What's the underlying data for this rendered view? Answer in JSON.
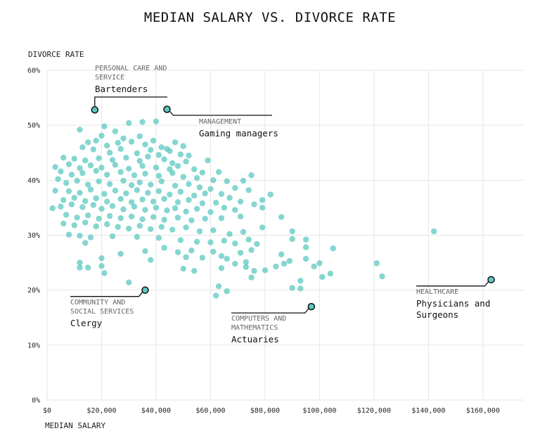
{
  "chart_data": {
    "type": "scatter",
    "title": "MEDIAN SALARY VS. DIVORCE RATE",
    "xlabel": "MEDIAN SALARY",
    "ylabel": "DIVORCE RATE",
    "xlim": [
      0,
      175000
    ],
    "ylim": [
      0,
      60
    ],
    "x_ticks": [
      0,
      20000,
      40000,
      60000,
      80000,
      100000,
      120000,
      140000,
      160000
    ],
    "x_tick_labels": [
      "$0",
      "$20,000",
      "$40,000",
      "$60,000",
      "$80,000",
      "$100,000",
      "$120,000",
      "$140,000",
      "$160,000"
    ],
    "y_ticks": [
      0,
      10,
      20,
      30,
      40,
      50,
      60
    ],
    "y_tick_labels": [
      "0%",
      "10%",
      "20%",
      "30%",
      "40%",
      "50%",
      "60%"
    ],
    "grid": true,
    "highlights": [
      {
        "category": "PERSONAL CARE AND SERVICE",
        "job": "Bartenders",
        "x": 17500,
        "y": 52.8
      },
      {
        "category": "MANAGEMENT",
        "job": "Gaming managers",
        "x": 44000,
        "y": 52.9
      },
      {
        "category": "COMMUNITY AND SOCIAL SERVICES",
        "job": "Clergy",
        "x": 36000,
        "y": 20.0
      },
      {
        "category": "COMPUTERS AND MATHEMATICS",
        "job": "Actuaries",
        "x": 97000,
        "y": 17.0
      },
      {
        "category": "HEALTHCARE",
        "job": "Physicians and Surgeons",
        "x": 163000,
        "y": 21.9
      }
    ],
    "points": [
      [
        12000,
        49.2
      ],
      [
        21000,
        49.8
      ],
      [
        30000,
        50.4
      ],
      [
        35000,
        50.6
      ],
      [
        40000,
        50.7
      ],
      [
        25000,
        48.9
      ],
      [
        20000,
        48.1
      ],
      [
        28000,
        47.6
      ],
      [
        34000,
        48.0
      ],
      [
        39000,
        47.2
      ],
      [
        15000,
        46.9
      ],
      [
        18000,
        47.2
      ],
      [
        22000,
        46.3
      ],
      [
        26000,
        46.8
      ],
      [
        31000,
        47.0
      ],
      [
        36000,
        46.5
      ],
      [
        42000,
        46.0
      ],
      [
        47000,
        46.9
      ],
      [
        50000,
        46.2
      ],
      [
        45000,
        45.3
      ],
      [
        13000,
        46.0
      ],
      [
        17000,
        45.6
      ],
      [
        23000,
        45.0
      ],
      [
        27000,
        45.7
      ],
      [
        33000,
        44.9
      ],
      [
        38000,
        45.5
      ],
      [
        41000,
        44.6
      ],
      [
        44000,
        45.7
      ],
      [
        49000,
        44.7
      ],
      [
        52000,
        44.5
      ],
      [
        6000,
        44.1
      ],
      [
        10000,
        43.9
      ],
      [
        14000,
        43.6
      ],
      [
        19000,
        44.0
      ],
      [
        24000,
        43.7
      ],
      [
        29000,
        44.1
      ],
      [
        34000,
        43.5
      ],
      [
        37000,
        44.3
      ],
      [
        43000,
        43.8
      ],
      [
        46000,
        43.1
      ],
      [
        51000,
        43.4
      ],
      [
        59000,
        43.6
      ],
      [
        3000,
        42.4
      ],
      [
        8000,
        42.9
      ],
      [
        12000,
        42.2
      ],
      [
        16000,
        42.7
      ],
      [
        20000,
        42.3
      ],
      [
        25000,
        42.8
      ],
      [
        30000,
        42.1
      ],
      [
        35000,
        42.6
      ],
      [
        40000,
        42.3
      ],
      [
        45000,
        42.0
      ],
      [
        48000,
        42.6
      ],
      [
        54000,
        42.0
      ],
      [
        57000,
        41.4
      ],
      [
        63000,
        41.5
      ],
      [
        75000,
        40.9
      ],
      [
        5000,
        41.6
      ],
      [
        9000,
        41.0
      ],
      [
        13000,
        41.3
      ],
      [
        18000,
        41.7
      ],
      [
        22000,
        41.0
      ],
      [
        27000,
        41.5
      ],
      [
        32000,
        40.9
      ],
      [
        36000,
        41.2
      ],
      [
        41000,
        40.8
      ],
      [
        46000,
        41.3
      ],
      [
        50000,
        40.6
      ],
      [
        55000,
        40.4
      ],
      [
        61000,
        40.0
      ],
      [
        66000,
        39.8
      ],
      [
        72000,
        39.9
      ],
      [
        4000,
        40.2
      ],
      [
        7000,
        39.5
      ],
      [
        11000,
        39.9
      ],
      [
        15000,
        39.2
      ],
      [
        19000,
        39.8
      ],
      [
        23000,
        39.3
      ],
      [
        28000,
        39.9
      ],
      [
        31000,
        39.1
      ],
      [
        34000,
        39.6
      ],
      [
        38000,
        39.2
      ],
      [
        42000,
        39.8
      ],
      [
        47000,
        39.0
      ],
      [
        52000,
        39.3
      ],
      [
        56000,
        38.7
      ],
      [
        60000,
        38.4
      ],
      [
        69000,
        38.6
      ],
      [
        74000,
        38.2
      ],
      [
        3000,
        38.1
      ],
      [
        8000,
        38.0
      ],
      [
        12000,
        37.7
      ],
      [
        16000,
        38.3
      ],
      [
        21000,
        37.5
      ],
      [
        25000,
        38.1
      ],
      [
        29000,
        37.6
      ],
      [
        33000,
        38.2
      ],
      [
        37000,
        37.7
      ],
      [
        41000,
        38.0
      ],
      [
        45000,
        37.4
      ],
      [
        49000,
        37.9
      ],
      [
        54000,
        37.2
      ],
      [
        58000,
        37.6
      ],
      [
        64000,
        37.5
      ],
      [
        67000,
        36.8
      ],
      [
        82000,
        37.4
      ],
      [
        6000,
        36.4
      ],
      [
        10000,
        36.8
      ],
      [
        14000,
        36.2
      ],
      [
        18000,
        36.7
      ],
      [
        22000,
        36.1
      ],
      [
        27000,
        36.6
      ],
      [
        31000,
        36.0
      ],
      [
        35000,
        36.5
      ],
      [
        39000,
        36.1
      ],
      [
        43000,
        36.6
      ],
      [
        48000,
        36.0
      ],
      [
        52000,
        36.4
      ],
      [
        57000,
        35.8
      ],
      [
        62000,
        35.9
      ],
      [
        71000,
        36.1
      ],
      [
        79000,
        36.4
      ],
      [
        2000,
        34.9
      ],
      [
        5000,
        35.2
      ],
      [
        9000,
        35.6
      ],
      [
        13000,
        35.1
      ],
      [
        17000,
        35.5
      ],
      [
        20000,
        34.8
      ],
      [
        24000,
        35.3
      ],
      [
        28000,
        34.7
      ],
      [
        32000,
        35.2
      ],
      [
        36000,
        34.6
      ],
      [
        40000,
        35.0
      ],
      [
        44000,
        34.5
      ],
      [
        47000,
        34.9
      ],
      [
        51000,
        34.3
      ],
      [
        55000,
        34.8
      ],
      [
        60000,
        34.2
      ],
      [
        65000,
        35.0
      ],
      [
        69000,
        34.6
      ],
      [
        76000,
        35.6
      ],
      [
        79000,
        35.0
      ],
      [
        7000,
        33.7
      ],
      [
        11000,
        33.2
      ],
      [
        15000,
        33.6
      ],
      [
        19000,
        33.0
      ],
      [
        23000,
        33.5
      ],
      [
        27000,
        33.1
      ],
      [
        31000,
        33.4
      ],
      [
        35000,
        32.9
      ],
      [
        39000,
        33.3
      ],
      [
        43000,
        32.8
      ],
      [
        48000,
        33.2
      ],
      [
        53000,
        32.7
      ],
      [
        58000,
        33.0
      ],
      [
        64000,
        33.1
      ],
      [
        71000,
        33.4
      ],
      [
        86000,
        33.3
      ],
      [
        6000,
        32.1
      ],
      [
        10000,
        31.8
      ],
      [
        14000,
        32.3
      ],
      [
        18000,
        31.6
      ],
      [
        22000,
        32.0
      ],
      [
        26000,
        31.5
      ],
      [
        30000,
        31.2
      ],
      [
        34000,
        31.7
      ],
      [
        38000,
        31.1
      ],
      [
        42000,
        31.5
      ],
      [
        46000,
        31.0
      ],
      [
        51000,
        31.4
      ],
      [
        56000,
        30.7
      ],
      [
        61000,
        30.9
      ],
      [
        67000,
        30.2
      ],
      [
        72000,
        30.6
      ],
      [
        79000,
        31.4
      ],
      [
        8000,
        30.1
      ],
      [
        12000,
        29.9
      ],
      [
        16000,
        29.6
      ],
      [
        24000,
        29.8
      ],
      [
        33000,
        29.7
      ],
      [
        41000,
        29.5
      ],
      [
        49000,
        29.1
      ],
      [
        55000,
        28.8
      ],
      [
        60000,
        28.7
      ],
      [
        65000,
        29.0
      ],
      [
        69000,
        28.5
      ],
      [
        74000,
        29.2
      ],
      [
        77000,
        28.4
      ],
      [
        90000,
        30.7
      ],
      [
        90000,
        29.3
      ],
      [
        95000,
        29.2
      ],
      [
        14000,
        28.6
      ],
      [
        27000,
        26.6
      ],
      [
        36000,
        27.1
      ],
      [
        43000,
        27.7
      ],
      [
        48000,
        26.9
      ],
      [
        53000,
        27.2
      ],
      [
        61000,
        27.0
      ],
      [
        64000,
        26.2
      ],
      [
        71000,
        26.8
      ],
      [
        75000,
        27.3
      ],
      [
        95000,
        27.8
      ],
      [
        105000,
        27.6
      ],
      [
        12000,
        25.0
      ],
      [
        20000,
        25.8
      ],
      [
        38000,
        25.5
      ],
      [
        51000,
        26.0
      ],
      [
        57000,
        25.9
      ],
      [
        66000,
        25.7
      ],
      [
        69000,
        24.8
      ],
      [
        73000,
        25.1
      ],
      [
        86000,
        26.5
      ],
      [
        89000,
        25.3
      ],
      [
        95000,
        25.7
      ],
      [
        12000,
        24.1
      ],
      [
        15000,
        24.1
      ],
      [
        20000,
        24.4
      ],
      [
        50000,
        23.9
      ],
      [
        54000,
        23.5
      ],
      [
        64000,
        24.0
      ],
      [
        73000,
        24.2
      ],
      [
        76000,
        23.5
      ],
      [
        80000,
        23.6
      ],
      [
        84000,
        24.3
      ],
      [
        87000,
        24.8
      ],
      [
        98000,
        24.3
      ],
      [
        100000,
        24.9
      ],
      [
        104000,
        23.0
      ],
      [
        121000,
        24.9
      ],
      [
        21000,
        23.1
      ],
      [
        75000,
        22.3
      ],
      [
        93000,
        21.7
      ],
      [
        101000,
        22.4
      ],
      [
        123000,
        22.5
      ],
      [
        30000,
        21.4
      ],
      [
        63000,
        20.7
      ],
      [
        66000,
        19.8
      ],
      [
        90000,
        20.4
      ],
      [
        93000,
        20.3
      ],
      [
        62000,
        19.0
      ],
      [
        142000,
        30.7
      ]
    ]
  }
}
